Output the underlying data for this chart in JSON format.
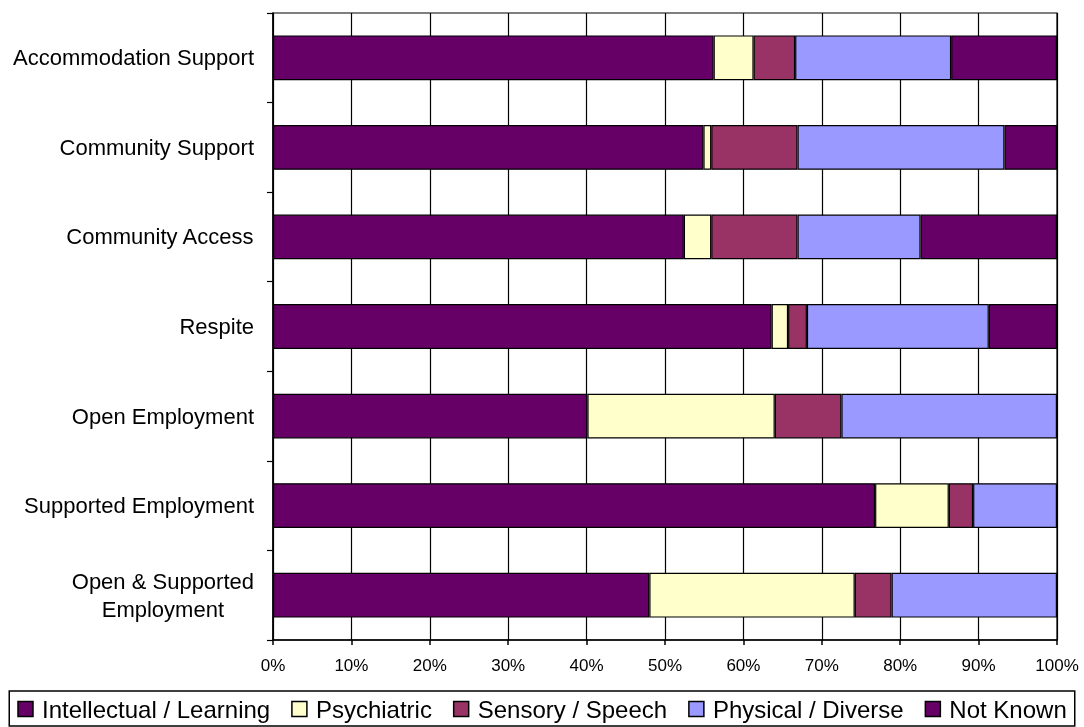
{
  "chart_data": {
    "type": "bar",
    "orientation": "horizontal",
    "stacked": true,
    "categories": [
      "Accommodation Support",
      "Community Support",
      "Community Access",
      "Respite",
      "Open Employment",
      "Supported Employment",
      "Open & Supported Employment"
    ],
    "series": [
      {
        "name": "Intellectual / Learning",
        "color": "#660066",
        "values": [
          56.2,
          54.9,
          52.4,
          63.6,
          40.1,
          76.8,
          48.0
        ]
      },
      {
        "name": "Psychiatric",
        "color": "#ffffcc",
        "values": [
          5.1,
          1.0,
          3.5,
          2.1,
          23.9,
          9.4,
          26.2
        ]
      },
      {
        "name": "Sensory / Speech",
        "color": "#993366",
        "values": [
          5.3,
          11.0,
          11.0,
          2.4,
          8.5,
          3.1,
          4.7
        ]
      },
      {
        "name": "Physical / Diverse",
        "color": "#9999ff",
        "values": [
          19.9,
          26.4,
          15.7,
          23.2,
          27.5,
          10.7,
          21.1
        ]
      },
      {
        "name": "Not Known",
        "color": "#660066",
        "values": [
          13.5,
          6.7,
          17.4,
          8.7,
          null,
          null,
          null
        ]
      }
    ],
    "xlim": [
      0,
      100
    ],
    "xticks": [
      {
        "value": 0,
        "label": "0%"
      },
      {
        "value": 10,
        "label": "10%"
      },
      {
        "value": 20,
        "label": "20%"
      },
      {
        "value": 30,
        "label": "30%"
      },
      {
        "value": 40,
        "label": "40%"
      },
      {
        "value": 50,
        "label": "50%"
      },
      {
        "value": 60,
        "label": "60%"
      },
      {
        "value": 70,
        "label": "70%"
      },
      {
        "value": 80,
        "label": "80%"
      },
      {
        "value": 90,
        "label": "90%"
      },
      {
        "value": 100,
        "label": "100%"
      }
    ],
    "grid": "x",
    "legend": "bottom"
  }
}
